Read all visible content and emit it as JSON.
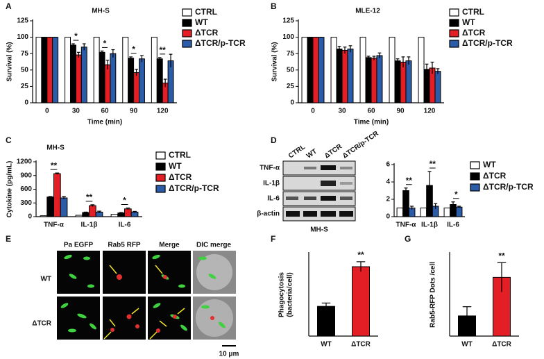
{
  "chart_data": [
    {
      "type": "bar",
      "panel": "A",
      "title": "MH-S",
      "x_label": "Time (min)",
      "y_label": "Survival (%)",
      "categories": [
        "0",
        "30",
        "60",
        "90",
        "120"
      ],
      "series": [
        {
          "name": "CTRL",
          "color": "#ffffff",
          "values": [
            100,
            100,
            100,
            100,
            100
          ]
        },
        {
          "name": "WT",
          "color": "#000000",
          "values": [
            100,
            88,
            77,
            68,
            67
          ],
          "errors": [
            0,
            2,
            2,
            2,
            2
          ]
        },
        {
          "name": "ΔTCR",
          "color": "#e31e24",
          "values": [
            100,
            73,
            58,
            46,
            30
          ],
          "errors": [
            0,
            4,
            7,
            5,
            6
          ]
        },
        {
          "name": "ΔTCR/p-TCR",
          "color": "#2b5ca8",
          "values": [
            100,
            85,
            75,
            67,
            64
          ],
          "errors": [
            0,
            5,
            6,
            5,
            10
          ]
        }
      ],
      "ylim": [
        0,
        125
      ],
      "yticks": [
        0,
        25,
        50,
        75,
        100,
        125
      ],
      "significance": [
        null,
        "*",
        "*",
        "*",
        "**"
      ]
    },
    {
      "type": "bar",
      "panel": "B",
      "title": "MLE-12",
      "x_label": "Time (min)",
      "y_label": "Survival (%)",
      "categories": [
        "0",
        "30",
        "60",
        "90",
        "120"
      ],
      "series": [
        {
          "name": "CTRL",
          "color": "#ffffff",
          "values": [
            100,
            100,
            100,
            100,
            100
          ]
        },
        {
          "name": "WT",
          "color": "#000000",
          "values": [
            100,
            82,
            69,
            64,
            51
          ],
          "errors": [
            0,
            4,
            2,
            3,
            8
          ]
        },
        {
          "name": "ΔTCR",
          "color": "#e31e24",
          "values": [
            100,
            80,
            68,
            62,
            53
          ],
          "errors": [
            0,
            5,
            3,
            8,
            9
          ]
        },
        {
          "name": "ΔTCR/p-TCR",
          "color": "#2b5ca8",
          "values": [
            100,
            82,
            72,
            64,
            48
          ],
          "errors": [
            0,
            5,
            4,
            6,
            4
          ]
        }
      ],
      "ylim": [
        0,
        125
      ],
      "yticks": [
        0,
        25,
        50,
        75,
        100,
        125
      ]
    },
    {
      "type": "bar",
      "panel": "C",
      "title": "MH-S",
      "y_label": "Cytokine (pg/mL)",
      "categories": [
        "TNF-α",
        "IL-1β",
        "IL-6"
      ],
      "series": [
        {
          "name": "CTRL",
          "color": "#ffffff",
          "values": [
            20,
            30,
            50
          ]
        },
        {
          "name": "WT",
          "color": "#000000",
          "values": [
            430,
            90,
            80
          ],
          "errors": [
            10,
            10,
            10
          ]
        },
        {
          "name": "ΔTCR",
          "color": "#e31e24",
          "values": [
            940,
            240,
            170
          ],
          "errors": [
            15,
            20,
            20
          ]
        },
        {
          "name": "ΔTCR/p-TCR",
          "color": "#2b5ca8",
          "values": [
            410,
            100,
            100
          ],
          "errors": [
            30,
            20,
            15
          ]
        }
      ],
      "ylim": [
        0,
        1200
      ],
      "yticks": [
        0,
        300,
        600,
        900,
        1200
      ],
      "significance": [
        "**",
        "**",
        "*"
      ]
    },
    {
      "type": "bar",
      "panel": "D",
      "categories": [
        "TNF-α",
        "IL-1β",
        "IL-6"
      ],
      "series": [
        {
          "name": "WT",
          "color": "#ffffff",
          "values": [
            1,
            1,
            1
          ]
        },
        {
          "name": "ΔTCR",
          "color": "#000000",
          "values": [
            3.0,
            3.6,
            1.4
          ],
          "errors": [
            0.3,
            1.6,
            0.3
          ]
        },
        {
          "name": "ΔTCR/p-TCR",
          "color": "#2b5ca8",
          "values": [
            1.0,
            1.2,
            1.1
          ],
          "errors": [
            0.2,
            0.3,
            0.1
          ]
        }
      ],
      "ylim": [
        0,
        6
      ],
      "yticks": [
        0,
        2,
        4,
        6
      ],
      "significance": [
        "**",
        "**",
        "*"
      ]
    },
    {
      "type": "bar",
      "panel": "F",
      "y_label": [
        "Phagocytosis",
        "(bacteria/cell)"
      ],
      "categories": [
        "WT",
        "ΔTCR"
      ],
      "values": [
        1.8,
        4.2
      ],
      "errors": [
        0.2,
        0.3
      ],
      "colors": [
        "#000000",
        "#e31e24"
      ],
      "ylim": [
        0,
        5
      ],
      "significance": [
        null,
        "**"
      ]
    },
    {
      "type": "bar",
      "panel": "G",
      "y_label": "Rab5-RFP Dots /cell",
      "categories": [
        "WT",
        "ΔTCR"
      ],
      "values": [
        1.1,
        3.2
      ],
      "errors": [
        0.5,
        0.8
      ],
      "colors": [
        "#000000",
        "#e31e24"
      ],
      "ylim": [
        0,
        4.5
      ],
      "significance": [
        null,
        "**"
      ]
    }
  ],
  "blot": {
    "lanes": [
      "CTRL",
      "WT",
      "ΔTCR",
      "ΔTCR/p-TCR"
    ],
    "rows": [
      "TNF-α",
      "IL-1β",
      "IL-6",
      "β-actin"
    ],
    "caption": "MH-S"
  },
  "microscopy": {
    "panel": "E",
    "columns": [
      "Pa EGFP",
      "Rab5 RFP",
      "Merge",
      "DIC merge"
    ],
    "rows": [
      "WT",
      "ΔTCR"
    ],
    "scale_bar": "10 μm"
  }
}
